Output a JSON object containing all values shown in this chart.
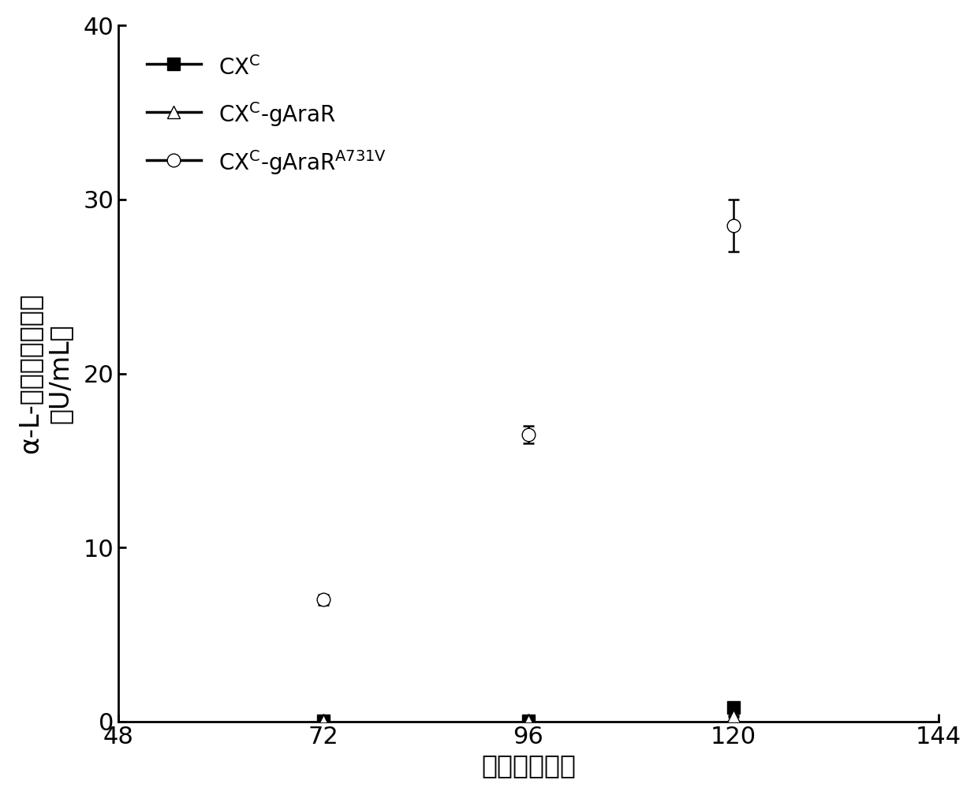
{
  "x_data": [
    72,
    96,
    120
  ],
  "series": [
    {
      "name_parts": [
        "CX",
        "C"
      ],
      "superscript": true,
      "values": [
        0.05,
        0.05,
        0.8
      ],
      "yerr": [
        0.05,
        0.05,
        0.1
      ],
      "marker": "s",
      "markerfacecolor": "black",
      "markeredgecolor": "black",
      "linecolor": "black",
      "markersize": 12
    },
    {
      "name_parts": [
        "CX",
        "C",
        "-gAraR"
      ],
      "superscript": true,
      "values": [
        0.05,
        0.05,
        0.3
      ],
      "yerr": [
        0.05,
        0.05,
        0.05
      ],
      "marker": "^",
      "markerfacecolor": "white",
      "markeredgecolor": "black",
      "linecolor": "black",
      "markersize": 12
    },
    {
      "name_parts": [
        "CX",
        "C",
        "-gAraR",
        "A731V"
      ],
      "superscript": true,
      "values": [
        7.0,
        16.5,
        28.5
      ],
      "yerr": [
        0.3,
        0.5,
        1.5
      ],
      "marker": "o",
      "markerfacecolor": "white",
      "markeredgecolor": "black",
      "linecolor": "black",
      "markersize": 12
    }
  ],
  "xlim": [
    48,
    144
  ],
  "ylim": [
    0,
    40
  ],
  "xticks": [
    48,
    72,
    96,
    120,
    144
  ],
  "yticks": [
    0,
    10,
    20,
    30,
    40
  ],
  "xlabel": "时间（小时）",
  "ylabel_line1": "α-L-阿拉伯糖苷活力",
  "ylabel_line2": "（U/mL）",
  "linewidth": 2.5,
  "tick_fontsize": 22,
  "label_fontsize": 24,
  "background_color": "#ffffff"
}
